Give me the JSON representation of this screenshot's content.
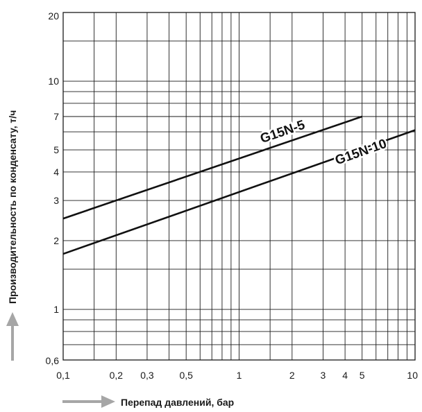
{
  "chart_data": {
    "type": "line",
    "title": "",
    "xlabel": "Перепад давлений, бар",
    "ylabel": "Производительность по конденсату, т/ч",
    "x_scale": "log",
    "y_scale": "log",
    "xlim": [
      0.1,
      10
    ],
    "ylim": [
      0.6,
      20
    ],
    "grid": true,
    "legend": "none",
    "x_ticks": [
      {
        "value": 0.1,
        "label": "0,1"
      },
      {
        "value": 0.2,
        "label": "0,2"
      },
      {
        "value": 0.3,
        "label": "0,3"
      },
      {
        "value": 0.5,
        "label": "0,5"
      },
      {
        "value": 1,
        "label": "1"
      },
      {
        "value": 2,
        "label": "2"
      },
      {
        "value": 3,
        "label": "3"
      },
      {
        "value": 4,
        "label": "4"
      },
      {
        "value": 5,
        "label": "5"
      },
      {
        "value": 10,
        "label": "10"
      }
    ],
    "y_ticks": [
      {
        "value": 0.6,
        "label": "0,6"
      },
      {
        "value": 1,
        "label": "1"
      },
      {
        "value": 2,
        "label": "2"
      },
      {
        "value": 3,
        "label": "3"
      },
      {
        "value": 4,
        "label": "4"
      },
      {
        "value": 5,
        "label": "5"
      },
      {
        "value": 7,
        "label": "7"
      },
      {
        "value": 10,
        "label": "10"
      },
      {
        "value": 20,
        "label": "20"
      }
    ],
    "x_grid": [
      0.1,
      0.15,
      0.2,
      0.3,
      0.4,
      0.5,
      0.6,
      0.7,
      0.8,
      0.9,
      1,
      1.5,
      2,
      3,
      4,
      5,
      6,
      7,
      8,
      9,
      10
    ],
    "y_grid": [
      0.6,
      0.7,
      0.8,
      0.9,
      1,
      1.5,
      2,
      3,
      4,
      5,
      6,
      7,
      8,
      9,
      10,
      15,
      20
    ],
    "series": [
      {
        "name": "G15N-5",
        "color": "#111111",
        "x": [
          0.1,
          5
        ],
        "y": [
          2.5,
          7.0
        ]
      },
      {
        "name": "G15N-10",
        "color": "#111111",
        "x": [
          0.1,
          10
        ],
        "y": [
          1.75,
          6.1
        ]
      }
    ],
    "axis_arrow_color": "#a6a6a6",
    "grid_color": "#1a1a1a"
  }
}
